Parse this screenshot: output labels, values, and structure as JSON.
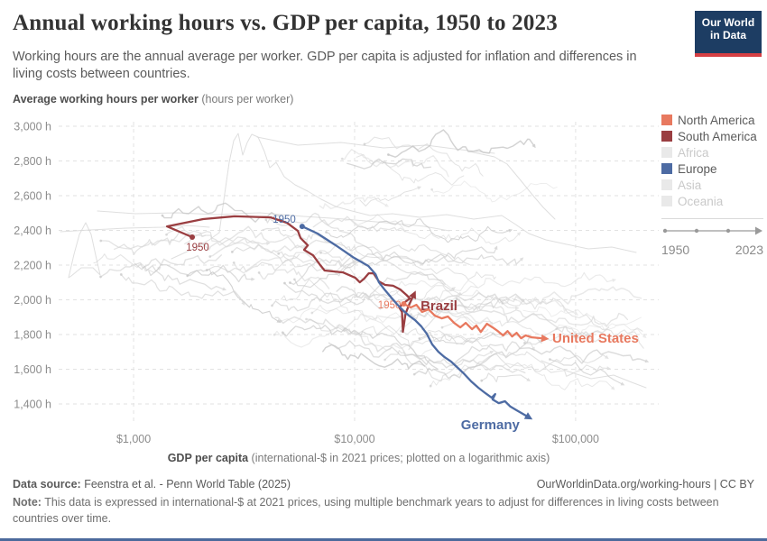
{
  "header": {
    "title": "Annual working hours vs. GDP per capita, 1950 to 2023",
    "subtitle": "Working hours are the annual average per worker. GDP per capita is adjusted for inflation and differences in living costs between countries.",
    "logo": {
      "line1": "Our World",
      "line2": "in Data"
    }
  },
  "colors": {
    "north_america": "#e8795f",
    "south_america": "#9a3e41",
    "europe": "#4d6ba3",
    "faded_swatch": "#e9e9e9",
    "faded_text": "#c9c9c9",
    "active_text": "#5b5b5b",
    "grid": "#e2e2e2",
    "background_line": "#d7d7d7",
    "tick_text": "#8c8c8c",
    "logo_navy": "#1d3d63",
    "logo_red": "#d63f43",
    "bottom_rule": "#4c6a9c"
  },
  "axes": {
    "y_title_bold": "Average working hours per worker",
    "y_title_light": " (hours per worker)",
    "x_title_bold": "GDP per capita",
    "x_title_light": " (international-$ in 2021 prices; plotted on a logarithmic axis)",
    "y_ticks": [
      {
        "label": "3,000 h",
        "value": 3000
      },
      {
        "label": "2,800 h",
        "value": 2800
      },
      {
        "label": "2,600 h",
        "value": 2600
      },
      {
        "label": "2,400 h",
        "value": 2400
      },
      {
        "label": "2,200 h",
        "value": 2200
      },
      {
        "label": "2,000 h",
        "value": 2000
      },
      {
        "label": "1,800 h",
        "value": 1800
      },
      {
        "label": "1,600 h",
        "value": 1600
      },
      {
        "label": "1,400 h",
        "value": 1400
      }
    ],
    "x_ticks": [
      {
        "label": "$1,000",
        "value": 1000
      },
      {
        "label": "$10,000",
        "value": 10000
      },
      {
        "label": "$100,000",
        "value": 100000
      }
    ]
  },
  "legend": {
    "entries": [
      {
        "label": "North America",
        "color": "#e8795f",
        "active": true
      },
      {
        "label": "South America",
        "color": "#9a3e41",
        "active": true
      },
      {
        "label": "Africa",
        "color": "#e9e9e9",
        "active": false
      },
      {
        "label": "Europe",
        "color": "#4d6ba3",
        "active": true
      },
      {
        "label": "Asia",
        "color": "#e9e9e9",
        "active": false
      },
      {
        "label": "Oceania",
        "color": "#e9e9e9",
        "active": false
      }
    ],
    "timeline": {
      "start": "1950",
      "end": "2023"
    }
  },
  "chart_data": {
    "type": "line",
    "subtype": "connected-scatter",
    "title": "Annual working hours vs. GDP per capita, 1950 to 2023",
    "xlabel": "GDP per capita (international-$ in 2021 prices; plotted on a logarithmic axis)",
    "ylabel": "Average working hours per worker (hours per worker)",
    "x_scale": "log",
    "xlim": [
      458,
      237700
    ],
    "ylim": [
      1286,
      3026
    ],
    "grid": true,
    "legend_position": "right",
    "background_series_note": "All other countries shown as faded gray trajectories from 1950 to 2023",
    "series": [
      {
        "name": "Brazil",
        "continent": "South America",
        "color": "#9a3e41",
        "start_year_label": "1950",
        "points": [
          [
            1842,
            2361
          ],
          [
            1416,
            2423
          ],
          [
            2061,
            2465
          ],
          [
            2863,
            2481
          ],
          [
            4173,
            2475
          ],
          [
            4942,
            2444
          ],
          [
            5538,
            2397
          ],
          [
            5696,
            2356
          ],
          [
            6140,
            2314
          ],
          [
            5910,
            2288
          ],
          [
            6484,
            2257
          ],
          [
            6990,
            2200
          ],
          [
            7315,
            2169
          ],
          [
            8857,
            2158
          ],
          [
            10064,
            2127
          ],
          [
            10548,
            2101
          ],
          [
            11050,
            2122
          ],
          [
            11587,
            2153
          ],
          [
            12173,
            2153
          ],
          [
            12882,
            2106
          ],
          [
            13749,
            2086
          ],
          [
            14928,
            2081
          ],
          [
            16078,
            2060
          ],
          [
            17142,
            2029
          ],
          [
            17790,
            2008
          ],
          [
            16680,
            1982
          ],
          [
            15928,
            1956
          ],
          [
            16380,
            1930
          ],
          [
            16533,
            1816
          ],
          [
            16990,
            1920
          ],
          [
            17626,
            1971
          ],
          [
            18272,
            2013
          ]
        ]
      },
      {
        "name": "United States",
        "continent": "North America",
        "color": "#e8795f",
        "start_year_label": "1950",
        "points": [
          [
            16680,
            1977
          ],
          [
            17950,
            1956
          ],
          [
            19050,
            1971
          ],
          [
            20220,
            1930
          ],
          [
            21600,
            1945
          ],
          [
            23060,
            1909
          ],
          [
            24780,
            1893
          ],
          [
            26440,
            1904
          ],
          [
            28190,
            1867
          ],
          [
            30070,
            1841
          ],
          [
            31820,
            1867
          ],
          [
            33970,
            1831
          ],
          [
            35560,
            1852
          ],
          [
            37240,
            1815
          ],
          [
            39690,
            1862
          ],
          [
            42110,
            1841
          ],
          [
            44480,
            1820
          ],
          [
            46970,
            1795
          ],
          [
            49240,
            1820
          ],
          [
            51610,
            1789
          ],
          [
            54080,
            1810
          ],
          [
            56680,
            1779
          ],
          [
            59410,
            1795
          ],
          [
            63420,
            1784
          ],
          [
            70030,
            1779
          ]
        ]
      },
      {
        "name": "Germany",
        "continent": "Europe",
        "color": "#4d6ba3",
        "start_year_label": "1950",
        "points": [
          [
            5790,
            2423
          ],
          [
            6796,
            2382
          ],
          [
            8218,
            2314
          ],
          [
            9937,
            2242
          ],
          [
            11534,
            2195
          ],
          [
            12423,
            2148
          ],
          [
            12882,
            2101
          ],
          [
            13749,
            2055
          ],
          [
            14657,
            2013
          ],
          [
            15495,
            1977
          ],
          [
            16533,
            1940
          ],
          [
            17626,
            1909
          ],
          [
            18785,
            1883
          ],
          [
            20030,
            1847
          ],
          [
            21200,
            1805
          ],
          [
            22440,
            1743
          ],
          [
            23935,
            1701
          ],
          [
            25530,
            1670
          ],
          [
            27350,
            1644
          ],
          [
            29330,
            1608
          ],
          [
            31440,
            1571
          ],
          [
            33710,
            1530
          ],
          [
            36290,
            1494
          ],
          [
            39080,
            1462
          ],
          [
            41700,
            1436
          ],
          [
            43290,
            1457
          ],
          [
            42110,
            1426
          ],
          [
            44900,
            1405
          ],
          [
            47900,
            1416
          ],
          [
            50670,
            1385
          ],
          [
            54080,
            1364
          ],
          [
            59600,
            1333
          ]
        ]
      }
    ]
  },
  "footer": {
    "source_label": "Data source:",
    "source_text": " Feenstra et al. - Penn World Table (2025)",
    "link_text": "OurWorldinData.org/working-hours | CC BY",
    "note_label": "Note:",
    "note_text": " This data is expressed in international-$ at 2021 prices, using multiple benchmark years to adjust for differences in living costs between countries over time."
  }
}
